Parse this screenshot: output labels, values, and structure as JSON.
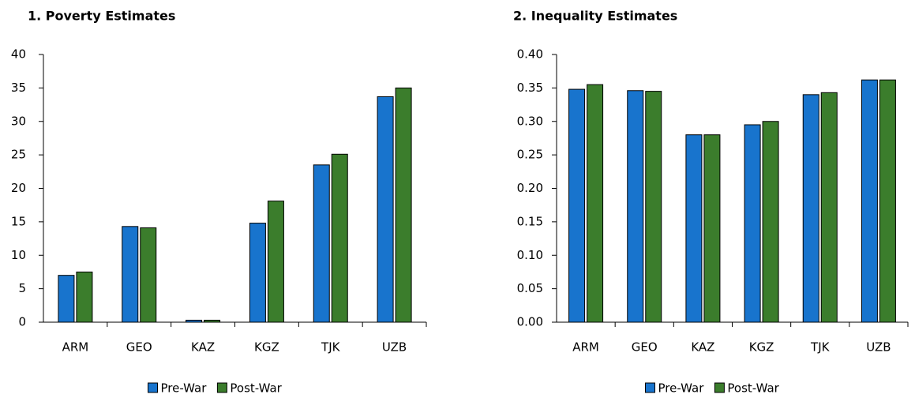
{
  "chart_data": [
    {
      "type": "bar",
      "title": "1. Poverty Estimates",
      "categories": [
        "ARM",
        "GEO",
        "KAZ",
        "KGZ",
        "TJK",
        "UZB"
      ],
      "series": [
        {
          "name": "Pre-War",
          "color": "#1874cd",
          "values": [
            7.0,
            14.3,
            0.3,
            14.8,
            23.5,
            33.7
          ]
        },
        {
          "name": "Post-War",
          "color": "#3b7d2c",
          "values": [
            7.5,
            14.1,
            0.3,
            18.1,
            25.1,
            35.0
          ]
        }
      ],
      "ylim": [
        0,
        40
      ],
      "yticks": [
        0,
        5,
        10,
        15,
        20,
        25,
        30,
        35,
        40
      ],
      "legend": "bottom"
    },
    {
      "type": "bar",
      "title": "2. Inequality Estimates",
      "categories": [
        "ARM",
        "GEO",
        "KAZ",
        "KGZ",
        "TJK",
        "UZB"
      ],
      "series": [
        {
          "name": "Pre-War",
          "color": "#1874cd",
          "values": [
            0.348,
            0.346,
            0.28,
            0.295,
            0.34,
            0.362
          ]
        },
        {
          "name": "Post-War",
          "color": "#3b7d2c",
          "values": [
            0.355,
            0.345,
            0.28,
            0.3,
            0.343,
            0.362
          ]
        }
      ],
      "ylim": [
        0,
        0.4
      ],
      "yticks": [
        {
          "value": 0,
          "label": "0.00"
        },
        {
          "value": 0.05,
          "label": "0.05"
        },
        {
          "value": 0.1,
          "label": "0.10"
        },
        {
          "value": 0.15,
          "label": "0.15"
        },
        {
          "value": 0.2,
          "label": "0.20"
        },
        {
          "value": 0.25,
          "label": "0.25"
        },
        {
          "value": 0.3,
          "label": "0.30"
        },
        {
          "value": 0.35,
          "label": "0.35"
        },
        {
          "value": 0.4,
          "label": "0.40"
        }
      ],
      "legend": "bottom"
    }
  ]
}
